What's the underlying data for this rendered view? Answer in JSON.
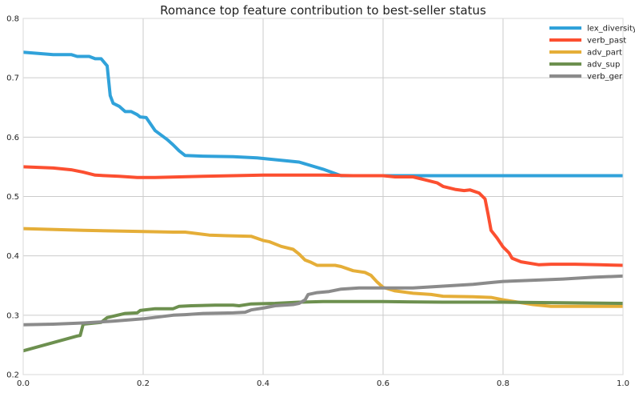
{
  "chart_data": {
    "type": "line",
    "title": "Romance top feature contribution to best-seller status",
    "xlabel": "",
    "ylabel": "",
    "xlim": [
      0,
      1
    ],
    "ylim": [
      0.2,
      0.8
    ],
    "x_ticks": [
      0.0,
      0.2,
      0.4,
      0.6,
      0.8,
      1.0
    ],
    "x_tick_labels": [
      "0.0",
      "0.2",
      "0.4",
      "0.6",
      "0.8",
      "1.0"
    ],
    "y_ticks": [
      0.2,
      0.3,
      0.4,
      0.5,
      0.6,
      0.7,
      0.8
    ],
    "y_tick_labels": [
      "0.2",
      "0.3",
      "0.4",
      "0.5",
      "0.6",
      "0.7",
      "0.8"
    ],
    "grid": true,
    "legend_position": "top-right",
    "series": [
      {
        "name": "lex_diversity",
        "color": "#30a2da",
        "points": [
          [
            0.0,
            0.743
          ],
          [
            0.05,
            0.739
          ],
          [
            0.08,
            0.739
          ],
          [
            0.09,
            0.736
          ],
          [
            0.11,
            0.736
          ],
          [
            0.12,
            0.732
          ],
          [
            0.13,
            0.732
          ],
          [
            0.14,
            0.72
          ],
          [
            0.145,
            0.67
          ],
          [
            0.15,
            0.657
          ],
          [
            0.16,
            0.652
          ],
          [
            0.17,
            0.643
          ],
          [
            0.18,
            0.643
          ],
          [
            0.19,
            0.638
          ],
          [
            0.195,
            0.634
          ],
          [
            0.205,
            0.633
          ],
          [
            0.22,
            0.611
          ],
          [
            0.24,
            0.596
          ],
          [
            0.25,
            0.587
          ],
          [
            0.26,
            0.577
          ],
          [
            0.27,
            0.569
          ],
          [
            0.3,
            0.568
          ],
          [
            0.35,
            0.567
          ],
          [
            0.39,
            0.565
          ],
          [
            0.42,
            0.562
          ],
          [
            0.46,
            0.558
          ],
          [
            0.5,
            0.546
          ],
          [
            0.53,
            0.535
          ],
          [
            0.56,
            0.535
          ],
          [
            0.6,
            0.535
          ],
          [
            0.65,
            0.535
          ],
          [
            0.7,
            0.535
          ],
          [
            0.8,
            0.535
          ],
          [
            0.9,
            0.535
          ],
          [
            1.0,
            0.535
          ]
        ]
      },
      {
        "name": "verb_past",
        "color": "#fc4f30",
        "points": [
          [
            0.0,
            0.55
          ],
          [
            0.05,
            0.548
          ],
          [
            0.08,
            0.545
          ],
          [
            0.1,
            0.541
          ],
          [
            0.12,
            0.536
          ],
          [
            0.16,
            0.534
          ],
          [
            0.19,
            0.532
          ],
          [
            0.22,
            0.532
          ],
          [
            0.3,
            0.534
          ],
          [
            0.4,
            0.536
          ],
          [
            0.5,
            0.536
          ],
          [
            0.55,
            0.535
          ],
          [
            0.6,
            0.535
          ],
          [
            0.62,
            0.533
          ],
          [
            0.65,
            0.533
          ],
          [
            0.67,
            0.528
          ],
          [
            0.69,
            0.523
          ],
          [
            0.7,
            0.517
          ],
          [
            0.72,
            0.512
          ],
          [
            0.735,
            0.51
          ],
          [
            0.745,
            0.511
          ],
          [
            0.76,
            0.506
          ],
          [
            0.77,
            0.496
          ],
          [
            0.775,
            0.47
          ],
          [
            0.78,
            0.443
          ],
          [
            0.79,
            0.43
          ],
          [
            0.8,
            0.415
          ],
          [
            0.81,
            0.405
          ],
          [
            0.815,
            0.396
          ],
          [
            0.83,
            0.39
          ],
          [
            0.86,
            0.385
          ],
          [
            0.88,
            0.386
          ],
          [
            0.92,
            0.386
          ],
          [
            0.96,
            0.385
          ],
          [
            1.0,
            0.384
          ]
        ]
      },
      {
        "name": "adv_part",
        "color": "#e5ae38",
        "points": [
          [
            0.0,
            0.446
          ],
          [
            0.1,
            0.443
          ],
          [
            0.2,
            0.441
          ],
          [
            0.25,
            0.44
          ],
          [
            0.27,
            0.44
          ],
          [
            0.31,
            0.435
          ],
          [
            0.34,
            0.434
          ],
          [
            0.38,
            0.433
          ],
          [
            0.4,
            0.426
          ],
          [
            0.41,
            0.424
          ],
          [
            0.43,
            0.416
          ],
          [
            0.45,
            0.411
          ],
          [
            0.46,
            0.403
          ],
          [
            0.47,
            0.393
          ],
          [
            0.48,
            0.389
          ],
          [
            0.49,
            0.384
          ],
          [
            0.52,
            0.384
          ],
          [
            0.53,
            0.382
          ],
          [
            0.55,
            0.375
          ],
          [
            0.57,
            0.372
          ],
          [
            0.58,
            0.367
          ],
          [
            0.59,
            0.356
          ],
          [
            0.6,
            0.347
          ],
          [
            0.62,
            0.341
          ],
          [
            0.65,
            0.337
          ],
          [
            0.68,
            0.335
          ],
          [
            0.7,
            0.332
          ],
          [
            0.75,
            0.331
          ],
          [
            0.78,
            0.33
          ],
          [
            0.8,
            0.326
          ],
          [
            0.85,
            0.318
          ],
          [
            0.88,
            0.315
          ],
          [
            0.92,
            0.315
          ],
          [
            1.0,
            0.315
          ]
        ]
      },
      {
        "name": "adv_sup",
        "color": "#6d904f",
        "points": [
          [
            0.0,
            0.24
          ],
          [
            0.09,
            0.265
          ],
          [
            0.095,
            0.266
          ],
          [
            0.1,
            0.285
          ],
          [
            0.12,
            0.287
          ],
          [
            0.13,
            0.288
          ],
          [
            0.14,
            0.296
          ],
          [
            0.17,
            0.303
          ],
          [
            0.19,
            0.304
          ],
          [
            0.195,
            0.308
          ],
          [
            0.22,
            0.311
          ],
          [
            0.25,
            0.311
          ],
          [
            0.26,
            0.315
          ],
          [
            0.28,
            0.316
          ],
          [
            0.32,
            0.317
          ],
          [
            0.35,
            0.317
          ],
          [
            0.36,
            0.316
          ],
          [
            0.38,
            0.319
          ],
          [
            0.42,
            0.32
          ],
          [
            0.46,
            0.322
          ],
          [
            0.5,
            0.323
          ],
          [
            0.6,
            0.323
          ],
          [
            0.7,
            0.322
          ],
          [
            0.8,
            0.322
          ],
          [
            0.9,
            0.321
          ],
          [
            1.0,
            0.32
          ]
        ]
      },
      {
        "name": "verb_ger",
        "color": "#8b8b8b",
        "points": [
          [
            0.0,
            0.284
          ],
          [
            0.05,
            0.285
          ],
          [
            0.1,
            0.287
          ],
          [
            0.15,
            0.29
          ],
          [
            0.2,
            0.294
          ],
          [
            0.25,
            0.3
          ],
          [
            0.27,
            0.301
          ],
          [
            0.3,
            0.303
          ],
          [
            0.35,
            0.304
          ],
          [
            0.37,
            0.305
          ],
          [
            0.38,
            0.309
          ],
          [
            0.4,
            0.312
          ],
          [
            0.42,
            0.316
          ],
          [
            0.45,
            0.318
          ],
          [
            0.46,
            0.32
          ],
          [
            0.47,
            0.326
          ],
          [
            0.475,
            0.335
          ],
          [
            0.49,
            0.338
          ],
          [
            0.51,
            0.34
          ],
          [
            0.53,
            0.344
          ],
          [
            0.56,
            0.346
          ],
          [
            0.6,
            0.346
          ],
          [
            0.65,
            0.346
          ],
          [
            0.7,
            0.349
          ],
          [
            0.75,
            0.352
          ],
          [
            0.78,
            0.355
          ],
          [
            0.8,
            0.357
          ],
          [
            0.85,
            0.359
          ],
          [
            0.9,
            0.361
          ],
          [
            0.95,
            0.364
          ],
          [
            1.0,
            0.366
          ]
        ]
      }
    ]
  }
}
